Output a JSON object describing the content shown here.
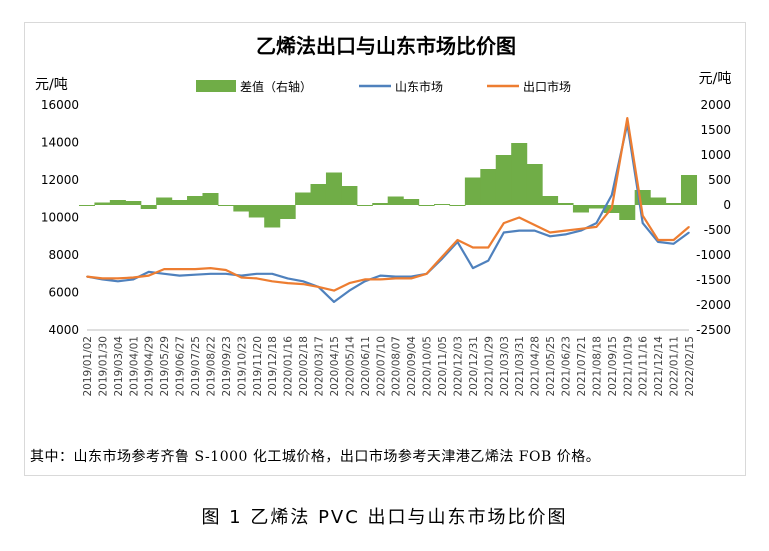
{
  "chart_data": {
    "type": "combo-area-line",
    "title": "乙烯法出口与山东市场比价图",
    "left_axis_unit": "元/吨",
    "right_axis_unit": "元/吨",
    "left_ticks": [
      4000,
      6000,
      8000,
      10000,
      12000,
      14000,
      16000
    ],
    "right_ticks": [
      -2500,
      -2000,
      -1500,
      -1000,
      -500,
      0,
      500,
      1000,
      1500,
      2000
    ],
    "ylim_left": [
      4000,
      16000
    ],
    "ylim_right": [
      -2500,
      2000
    ],
    "x_ticks": [
      "2019/01/02",
      "2019/01/30",
      "2019/03/04",
      "2019/04/01",
      "2019/04/29",
      "2019/05/29",
      "2019/06/27",
      "2019/07/25",
      "2019/08/22",
      "2019/09/23",
      "2019/10/23",
      "2019/11/20",
      "2019/12/18",
      "2020/01/16",
      "2020/02/18",
      "2020/03/17",
      "2020/04/15",
      "2020/05/14",
      "2020/06/11",
      "2020/07/10",
      "2020/08/07",
      "2020/09/04",
      "2020/10/05",
      "2020/11/05",
      "2020/12/03",
      "2020/12/31",
      "2021/01/29",
      "2021/03/03",
      "2021/03/31",
      "2021/04/28",
      "2021/05/25",
      "2021/06/23",
      "2021/07/21",
      "2021/08/18",
      "2021/09/15",
      "2021/10/19",
      "2021/11/16",
      "2021/12/14",
      "2022/01/11",
      "2022/02/15"
    ],
    "legend_position": "top",
    "grid": false,
    "series": [
      {
        "name": "差值（右轴）",
        "kind": "area",
        "axis": "right",
        "color": "#70ad47",
        "x": [
          "2019/01/02",
          "2019/01/30",
          "2019/03/04",
          "2019/04/01",
          "2019/04/29",
          "2019/05/29",
          "2019/06/27",
          "2019/07/25",
          "2019/08/22",
          "2019/09/23",
          "2019/10/23",
          "2019/11/20",
          "2019/12/18",
          "2020/01/16",
          "2020/02/18",
          "2020/03/17",
          "2020/04/15",
          "2020/05/14",
          "2020/06/11",
          "2020/07/10",
          "2020/08/07",
          "2020/09/04",
          "2020/10/05",
          "2020/11/05",
          "2020/12/03",
          "2020/12/31",
          "2021/01/29",
          "2021/03/03",
          "2021/03/31",
          "2021/04/28",
          "2021/05/25",
          "2021/06/23",
          "2021/07/21",
          "2021/08/18",
          "2021/09/15",
          "2021/10/19",
          "2021/11/16",
          "2021/12/14",
          "2022/01/11",
          "2022/02/15"
        ],
        "values": [
          0,
          50,
          100,
          80,
          -80,
          150,
          100,
          180,
          240,
          0,
          -130,
          -250,
          -450,
          -280,
          250,
          420,
          650,
          380,
          -20,
          40,
          170,
          120,
          0,
          20,
          0,
          550,
          720,
          1000,
          1240,
          820,
          180,
          40,
          -150,
          -70,
          -160,
          -300,
          300,
          150,
          40,
          600
        ]
      },
      {
        "name": "山东市场",
        "kind": "line",
        "axis": "left",
        "color": "#4f81bd",
        "x": [
          "2019/01/02",
          "2019/01/30",
          "2019/03/04",
          "2019/04/01",
          "2019/04/29",
          "2019/05/29",
          "2019/06/27",
          "2019/07/25",
          "2019/08/22",
          "2019/09/23",
          "2019/10/23",
          "2019/11/20",
          "2019/12/18",
          "2020/01/16",
          "2020/02/18",
          "2020/03/17",
          "2020/04/15",
          "2020/05/14",
          "2020/06/11",
          "2020/07/10",
          "2020/08/07",
          "2020/09/04",
          "2020/10/05",
          "2020/11/05",
          "2020/12/03",
          "2020/12/31",
          "2021/01/29",
          "2021/03/03",
          "2021/03/31",
          "2021/04/28",
          "2021/05/25",
          "2021/06/23",
          "2021/07/21",
          "2021/08/18",
          "2021/09/15",
          "2021/10/19",
          "2021/11/16",
          "2021/12/14",
          "2022/01/11",
          "2022/02/15"
        ],
        "values": [
          6850,
          6700,
          6600,
          6700,
          7100,
          7000,
          6900,
          6950,
          7000,
          7000,
          6900,
          7000,
          7000,
          6750,
          6600,
          6300,
          5500,
          6100,
          6600,
          6900,
          6850,
          6850,
          7000,
          7800,
          8700,
          7300,
          7700,
          9200,
          9300,
          9300,
          9000,
          9100,
          9300,
          9700,
          11200,
          15000,
          9700,
          8700,
          8600,
          9200
        ]
      },
      {
        "name": "出口市场",
        "kind": "line",
        "axis": "left",
        "color": "#ed7d31",
        "x": [
          "2019/01/02",
          "2019/01/30",
          "2019/03/04",
          "2019/04/01",
          "2019/04/29",
          "2019/05/29",
          "2019/06/27",
          "2019/07/25",
          "2019/08/22",
          "2019/09/23",
          "2019/10/23",
          "2019/11/20",
          "2019/12/18",
          "2020/01/16",
          "2020/02/18",
          "2020/03/17",
          "2020/04/15",
          "2020/05/14",
          "2020/06/11",
          "2020/07/10",
          "2020/08/07",
          "2020/09/04",
          "2020/10/05",
          "2020/11/05",
          "2020/12/03",
          "2020/12/31",
          "2021/01/29",
          "2021/03/03",
          "2021/03/31",
          "2021/04/28",
          "2021/05/25",
          "2021/06/23",
          "2021/07/21",
          "2021/08/18",
          "2021/09/15",
          "2021/10/19",
          "2021/11/16",
          "2021/12/14",
          "2022/01/11",
          "2022/02/15"
        ],
        "values": [
          6850,
          6750,
          6750,
          6800,
          6900,
          7250,
          7250,
          7250,
          7300,
          7200,
          6800,
          6750,
          6600,
          6500,
          6450,
          6300,
          6100,
          6500,
          6700,
          6700,
          6750,
          6750,
          7000,
          7900,
          8800,
          8400,
          8400,
          9700,
          10000,
          9600,
          9200,
          9300,
          9400,
          9500,
          10500,
          15300,
          10100,
          8800,
          8800,
          9500
        ]
      }
    ]
  },
  "legend": {
    "diff_label": "差值（右轴）",
    "shandong_label": "山东市场",
    "export_label": "出口市场"
  },
  "note": "其中：山东市场参考齐鲁 S-1000 化工城价格，出口市场参考天津港乙烯法 FOB 价格。",
  "caption": "图 1  乙烯法 PVC 出口与山东市场比价图"
}
